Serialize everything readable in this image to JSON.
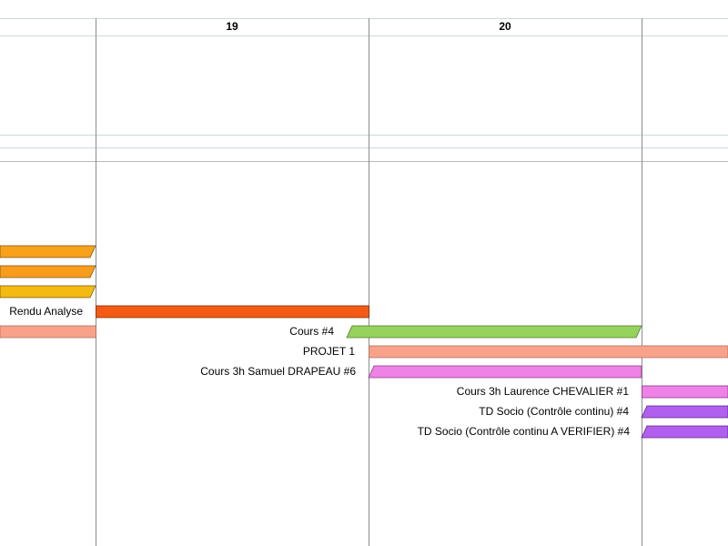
{
  "timeline": {
    "days": [
      {
        "label": "19"
      },
      {
        "label": "20"
      }
    ]
  },
  "tasks": [
    {
      "label": "",
      "color": "#F9A11B",
      "shape": "skew"
    },
    {
      "label": "",
      "color": "#F99C1C",
      "shape": "skew"
    },
    {
      "label": "",
      "color": "#F5BA11",
      "shape": "skew"
    },
    {
      "label": "Rendu Analyse",
      "color": "#F45A14",
      "shape": "rect"
    },
    {
      "label": "",
      "color": "#F9A28A",
      "shape": "rect"
    },
    {
      "label": "Cours #4",
      "color": "#97D25C",
      "shape": "skew"
    },
    {
      "label": "PROJET 1",
      "color": "#F9A28A",
      "shape": "rect"
    },
    {
      "label": "Cours 3h Samuel DRAPEAU #6",
      "color": "#EE82E6",
      "shape": "skew"
    },
    {
      "label": "Cours 3h Laurence CHEVALIER #1",
      "color": "#EE82E6",
      "shape": "rect"
    },
    {
      "label": "TD Socio (Contrôle continu) #4",
      "color": "#B15FEE",
      "shape": "skew"
    },
    {
      "label": "TD Socio (Contrôle continu A VERIFIER) #4",
      "color": "#B15FEE",
      "shape": "skew"
    }
  ]
}
